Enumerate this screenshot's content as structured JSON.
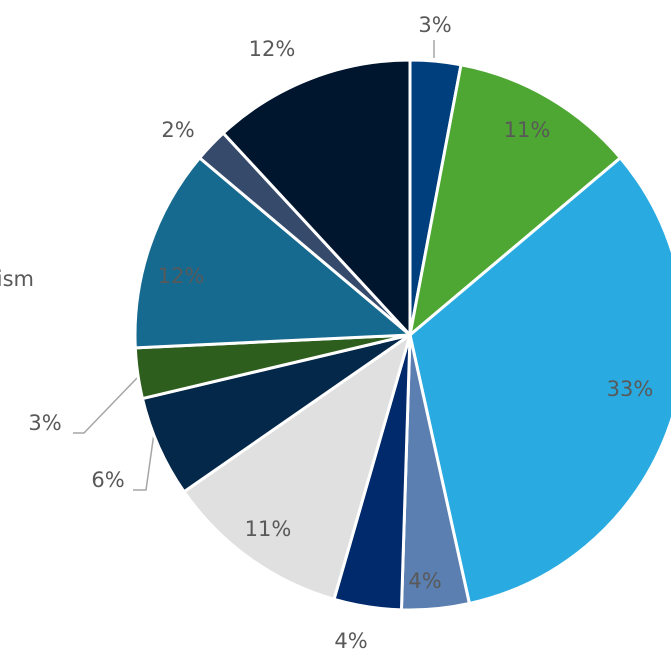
{
  "chart_data": {
    "type": "pie",
    "categories": [
      null,
      null,
      null,
      null,
      null,
      null,
      null,
      null,
      "ourism",
      null,
      null
    ],
    "values": [
      3,
      11,
      33,
      4,
      4,
      11,
      6,
      3,
      12,
      2,
      12
    ],
    "value_labels": [
      "3%",
      "11%",
      "33%",
      "4%",
      "4%",
      "11%",
      "6%",
      "3%",
      "12%",
      "2%",
      "12%"
    ],
    "colors": [
      "#003f7d",
      "#4ea733",
      "#29abe2",
      "#5a7fb0",
      "#002a6b",
      "#e0e0e0",
      "#04284a",
      "#2e5e1e",
      "#166a8f",
      "#364a6b",
      "#00152e"
    ]
  }
}
